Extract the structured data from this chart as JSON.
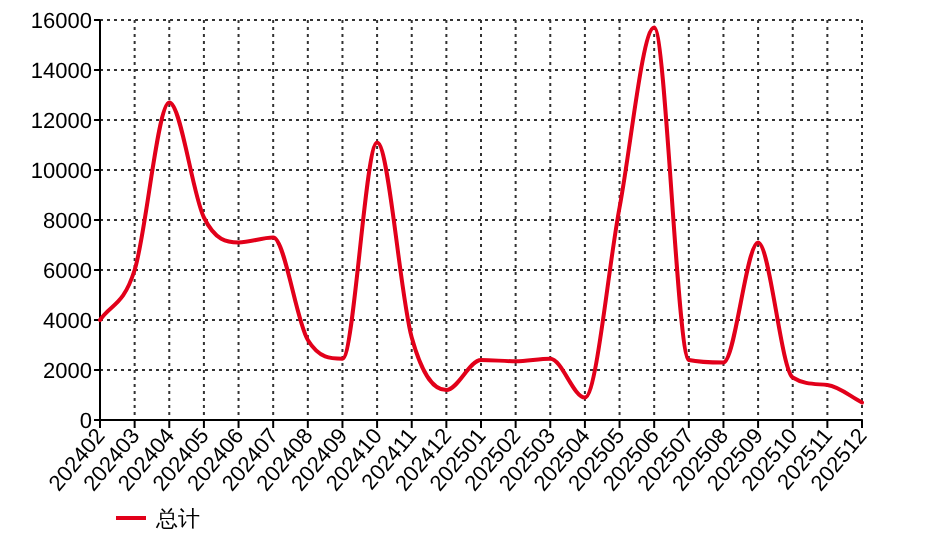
{
  "chart_data": {
    "type": "line",
    "categories": [
      "202402",
      "202403",
      "202404",
      "202405",
      "202406",
      "202407",
      "202408",
      "202409",
      "202410",
      "202411",
      "202412",
      "202501",
      "202502",
      "202503",
      "202504",
      "202505",
      "202506",
      "202507",
      "202508",
      "202509",
      "202510",
      "202511",
      "202512"
    ],
    "series": [
      {
        "name": "总计",
        "color": "#e2001a",
        "values": [
          4000,
          6000,
          12700,
          8100,
          7100,
          7300,
          3200,
          2450,
          11100,
          3300,
          1200,
          2400,
          2350,
          2450,
          900,
          8500,
          15700,
          2400,
          2300,
          7100,
          1700,
          1400,
          700
        ]
      }
    ],
    "ylim": [
      0,
      16000
    ],
    "yticks": [
      0,
      2000,
      4000,
      6000,
      8000,
      10000,
      12000,
      14000,
      16000
    ],
    "grid": true,
    "legend": "bottom",
    "line_style": "solid"
  }
}
